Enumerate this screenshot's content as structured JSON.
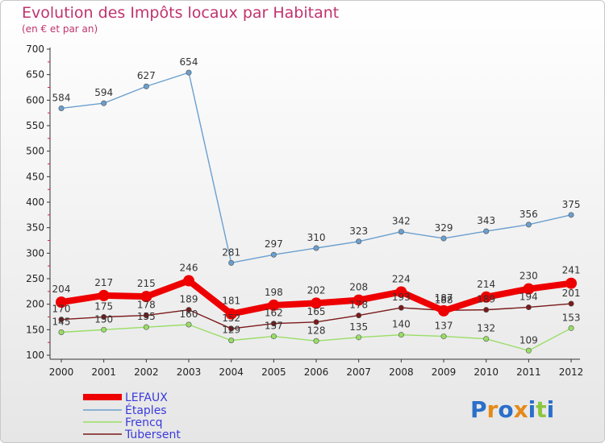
{
  "chart_data": {
    "type": "line",
    "title": "Evolution des Impôts locaux par Habitant",
    "subtitle": "(en € et par an)",
    "x": [
      "2000",
      "2001",
      "2002",
      "2003",
      "2004",
      "2005",
      "2006",
      "2007",
      "2008",
      "2009",
      "2010",
      "2011",
      "2012"
    ],
    "y_ticks": [
      "100",
      "150",
      "200",
      "250",
      "300",
      "350",
      "400",
      "450",
      "500",
      "550",
      "600",
      "650",
      "700"
    ],
    "ylim": [
      100,
      700
    ],
    "grid": false,
    "legend_position": "bottom-left",
    "series": [
      {
        "name": "LEFAUX",
        "color": "#ee0000",
        "values": [
          204,
          217,
          215,
          246,
          181,
          198,
          202,
          208,
          224,
          187,
          214,
          230,
          241
        ]
      },
      {
        "name": "Étaples",
        "color": "#6a9fcf",
        "values": [
          584,
          594,
          627,
          654,
          281,
          297,
          310,
          323,
          342,
          329,
          343,
          356,
          375
        ]
      },
      {
        "name": "Frencq",
        "color": "#99dd66",
        "values": [
          145,
          150,
          155,
          160,
          129,
          137,
          128,
          135,
          140,
          137,
          132,
          109,
          153
        ]
      },
      {
        "name": "Tubersent",
        "color": "#7a1a1a",
        "values": [
          170,
          175,
          178,
          189,
          152,
          162,
          165,
          178,
          193,
          188,
          189,
          194,
          201
        ]
      }
    ]
  },
  "logo": {
    "text": "Proxiti",
    "letters": [
      "P",
      "r",
      "o",
      "x",
      "i",
      "t",
      "i"
    ],
    "colors": [
      "#2a6fc9",
      "#e58a1a",
      "#2a6fc9",
      "#e58a1a",
      "#2a6fc9",
      "#8cc63f",
      "#2a6fc9"
    ]
  }
}
